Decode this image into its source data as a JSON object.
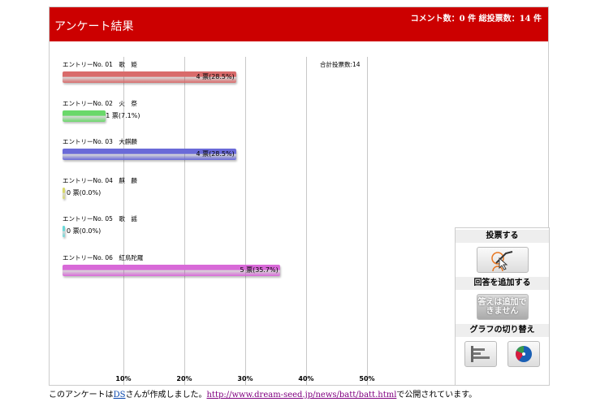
{
  "header": {
    "title": "アンケート結果",
    "stats": "コメント数：0 件 総投票数：14 件"
  },
  "total_label": "合計投票数:14",
  "chart_data": {
    "type": "bar",
    "orientation": "horizontal",
    "categories": [
      "エントリーNo. 01　歌　姫",
      "エントリーNo. 02　火　祭",
      "エントリーNo. 03　大麒麟",
      "エントリーNo. 04　麒　麟",
      "エントリーNo. 05　歌　謡",
      "エントリーNo. 06　紅鳥陀羅"
    ],
    "values": [
      28.5,
      7.1,
      28.5,
      0.0,
      0.0,
      35.7
    ],
    "votes": [
      4,
      1,
      4,
      0,
      0,
      5
    ],
    "value_labels": [
      "4 票(28.5%)",
      "1 票(7.1%)",
      "4 票(28.5%)",
      "0 票(0.0%)",
      "0 票(0.0%)",
      "5 票(35.7%)"
    ],
    "colors": [
      "#d96b6b",
      "#6ad86a",
      "#6a6ad8",
      "#d8d86a",
      "#6ad8d8",
      "#d86ad8"
    ],
    "xlim": [
      0,
      50
    ],
    "ticks": [
      "10%",
      "20%",
      "30%",
      "40%",
      "50%"
    ],
    "grid": true
  },
  "panel": {
    "vote": "投票する",
    "add": "回答を追加する",
    "add_button": "答えは追加できません",
    "switch": "グラフの切り替え"
  },
  "footer": {
    "pre": "このアンケートは",
    "author": "DS",
    "mid": "さんが作成しました。",
    "url": "http://www.dream-seed.jp/news/batt/batt.html",
    "post": "で公開されています。"
  }
}
